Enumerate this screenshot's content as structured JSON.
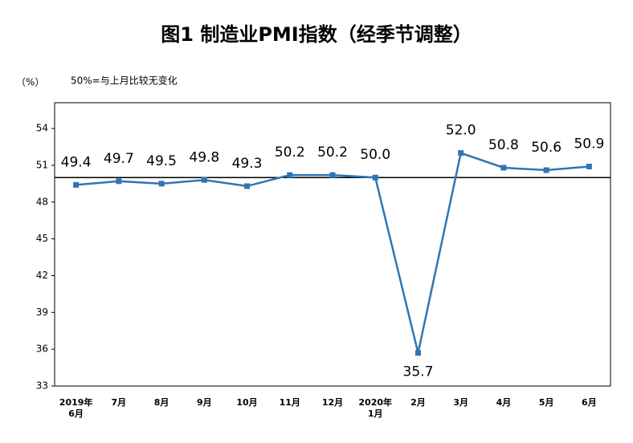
{
  "chart_data": {
    "type": "line",
    "title": "图1 制造业PMI指数（经季节调整）",
    "y_label": "（%）",
    "annotation": "50%=与上月比较无变化",
    "categories": [
      "2019年\n6月",
      "7月",
      "8月",
      "9月",
      "10月",
      "11月",
      "12月",
      "2020年\n1月",
      "2月",
      "3月",
      "4月",
      "5月",
      "6月"
    ],
    "series": [
      {
        "name": "制造业PMI",
        "color": "#2e75b6",
        "values": [
          49.4,
          49.7,
          49.5,
          49.8,
          49.3,
          50.2,
          50.2,
          50.0,
          35.7,
          52.0,
          50.8,
          50.6,
          50.9
        ],
        "value_labels": [
          "49.4",
          "49.7",
          "49.5",
          "49.8",
          "49.3",
          "50.2",
          "50.2",
          "50.0",
          "35.7",
          "52.0",
          "50.8",
          "50.6",
          "50.9"
        ]
      }
    ],
    "ylim": [
      33,
      56.1
    ],
    "yticks": [
      33,
      36,
      39,
      42,
      45,
      48,
      51,
      54
    ],
    "reference_line": 50
  }
}
